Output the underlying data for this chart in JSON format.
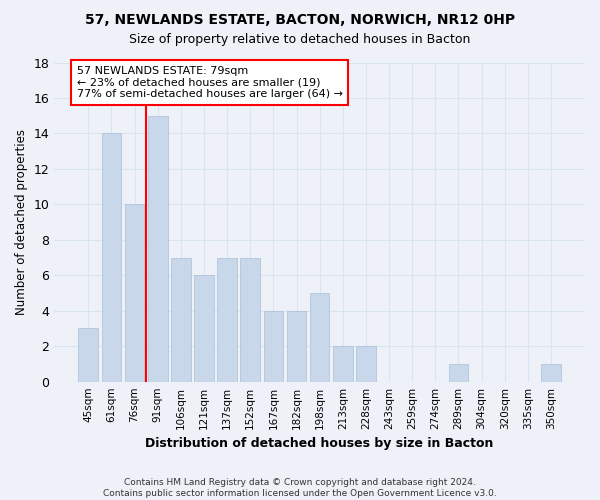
{
  "title1": "57, NEWLANDS ESTATE, BACTON, NORWICH, NR12 0HP",
  "title2": "Size of property relative to detached houses in Bacton",
  "xlabel": "Distribution of detached houses by size in Bacton",
  "ylabel": "Number of detached properties",
  "bar_labels": [
    "45sqm",
    "61sqm",
    "76sqm",
    "91sqm",
    "106sqm",
    "121sqm",
    "137sqm",
    "152sqm",
    "167sqm",
    "182sqm",
    "198sqm",
    "213sqm",
    "228sqm",
    "243sqm",
    "259sqm",
    "274sqm",
    "289sqm",
    "304sqm",
    "320sqm",
    "335sqm",
    "350sqm"
  ],
  "bar_values": [
    3,
    14,
    10,
    15,
    7,
    6,
    7,
    7,
    4,
    4,
    5,
    2,
    2,
    0,
    0,
    0,
    1,
    0,
    0,
    0,
    1
  ],
  "bar_color": "#c8d8ea",
  "bar_edgecolor": "#a8c0d8",
  "grid_color": "#d8e4f0",
  "background_color": "#eef2f8",
  "redline_x": 2.5,
  "annotation_text": "57 NEWLANDS ESTATE: 79sqm\n← 23% of detached houses are smaller (19)\n77% of semi-detached houses are larger (64) →",
  "annotation_box_color": "white",
  "annotation_edge_color": "red",
  "footer": "Contains HM Land Registry data © Crown copyright and database right 2024.\nContains public sector information licensed under the Open Government Licence v3.0.",
  "ylim": [
    0,
    18
  ],
  "yticks": [
    0,
    2,
    4,
    6,
    8,
    10,
    12,
    14,
    16,
    18
  ]
}
